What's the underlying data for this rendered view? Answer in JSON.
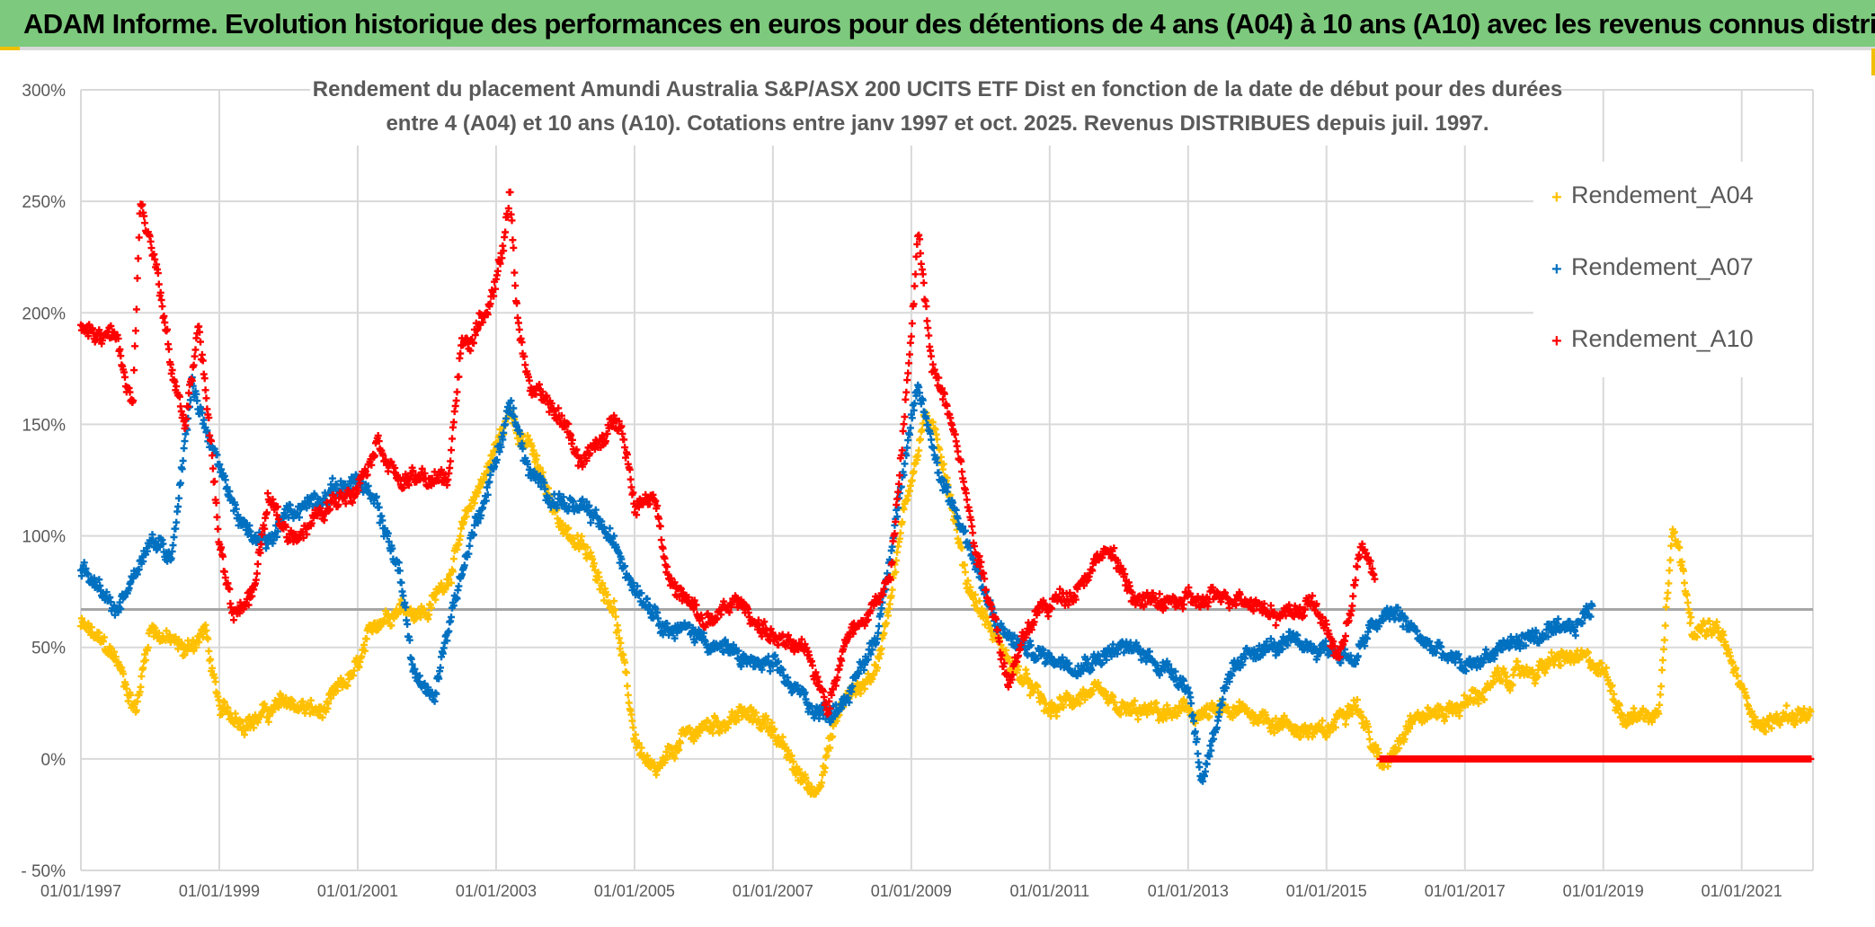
{
  "banner": {
    "title": "ADAM Informe. Evolution historique des performances en euros pour des détentions de 4 ans (A04) à 10 ans (A10) avec les revenus connus distribués",
    "background": "#7dc97d"
  },
  "chart_data": {
    "type": "scatter",
    "title_lines": [
      "Rendement du placement Amundi Australia S&P/ASX 200 UCITS ETF Dist en fonction de la date de début pour des durées",
      "entre 4 (A04) et 10 ans (A10). Cotations entre janv 1997 et oct. 2025. Revenus DISTRIBUES depuis juil. 1997."
    ],
    "xlabel": "",
    "ylabel": "",
    "xlim": [
      1997.0,
      2022.03
    ],
    "ylim": [
      -50,
      300
    ],
    "y_ticks": [
      300,
      250,
      200,
      150,
      100,
      50,
      0,
      -50
    ],
    "y_tick_labels": [
      "300%",
      "250%",
      "200%",
      "150%",
      "100%",
      "50%",
      "0%",
      "- 50%"
    ],
    "x_ticks": [
      1997,
      1999,
      2001,
      2003,
      2005,
      2007,
      2009,
      2011,
      2013,
      2015,
      2017,
      2019,
      2021
    ],
    "x_tick_labels": [
      "01/01/1997",
      "01/01/1999",
      "01/01/2001",
      "01/01/2003",
      "01/01/2005",
      "01/01/2007",
      "01/01/2009",
      "01/01/2011",
      "01/01/2013",
      "01/01/2015",
      "01/01/2017",
      "01/01/2019",
      "01/01/2021"
    ],
    "grid": true,
    "reference_line": 67,
    "legend_position": "right",
    "series": [
      {
        "name": "Rendement_A04",
        "color": "#ffc000",
        "points": [
          [
            1997.0,
            60
          ],
          [
            1997.5,
            45
          ],
          [
            1997.8,
            22
          ],
          [
            1998.0,
            60
          ],
          [
            1998.5,
            48
          ],
          [
            1998.8,
            58
          ],
          [
            1999.0,
            20
          ],
          [
            1999.5,
            18
          ],
          [
            2000.0,
            25
          ],
          [
            2000.5,
            20
          ],
          [
            2001.0,
            40
          ],
          [
            2001.3,
            62
          ],
          [
            2001.6,
            70
          ],
          [
            2002.0,
            66
          ],
          [
            2002.3,
            82
          ],
          [
            2002.7,
            118
          ],
          [
            2003.2,
            155
          ],
          [
            2003.5,
            140
          ],
          [
            2003.8,
            112
          ],
          [
            2004.3,
            92
          ],
          [
            2004.7,
            70
          ],
          [
            2005.0,
            10
          ],
          [
            2005.3,
            -10
          ],
          [
            2005.7,
            8
          ],
          [
            2006.0,
            14
          ],
          [
            2006.5,
            20
          ],
          [
            2007.0,
            15
          ],
          [
            2007.3,
            -5
          ],
          [
            2007.6,
            -15
          ],
          [
            2008.0,
            25
          ],
          [
            2008.5,
            40
          ],
          [
            2008.9,
            112
          ],
          [
            2009.2,
            155
          ],
          [
            2009.5,
            130
          ],
          [
            2009.8,
            80
          ],
          [
            2010.2,
            55
          ],
          [
            2010.5,
            40
          ],
          [
            2011.0,
            20
          ],
          [
            2011.5,
            30
          ],
          [
            2012.0,
            20
          ],
          [
            2012.5,
            20
          ],
          [
            2013.0,
            20
          ],
          [
            2013.5,
            20
          ],
          [
            2014.0,
            20
          ],
          [
            2014.5,
            15
          ],
          [
            2015.0,
            10
          ],
          [
            2015.4,
            30
          ],
          [
            2015.8,
            -5
          ],
          [
            2016.2,
            20
          ],
          [
            2016.5,
            20
          ],
          [
            2017.0,
            25
          ],
          [
            2017.5,
            35
          ],
          [
            2018.0,
            40
          ],
          [
            2018.5,
            45
          ],
          [
            2019.0,
            40
          ],
          [
            2019.3,
            20
          ],
          [
            2019.8,
            20
          ],
          [
            2020.0,
            110
          ],
          [
            2020.3,
            60
          ],
          [
            2020.7,
            55
          ],
          [
            2021.0,
            30
          ],
          [
            2021.3,
            15
          ],
          [
            2021.7,
            20
          ],
          [
            2022.0,
            20
          ]
        ]
      },
      {
        "name": "Rendement_A07",
        "color": "#0070c0",
        "points": [
          [
            1997.0,
            85
          ],
          [
            1997.5,
            65
          ],
          [
            1998.0,
            100
          ],
          [
            1998.3,
            90
          ],
          [
            1998.6,
            170
          ],
          [
            1999.0,
            130
          ],
          [
            1999.4,
            100
          ],
          [
            1999.7,
            95
          ],
          [
            2000.0,
            110
          ],
          [
            2000.5,
            120
          ],
          [
            2001.0,
            125
          ],
          [
            2001.3,
            110
          ],
          [
            2001.6,
            85
          ],
          [
            2001.8,
            40
          ],
          [
            2002.1,
            25
          ],
          [
            2002.3,
            60
          ],
          [
            2002.6,
            95
          ],
          [
            2003.0,
            135
          ],
          [
            2003.2,
            160
          ],
          [
            2003.5,
            125
          ],
          [
            2004.0,
            115
          ],
          [
            2004.5,
            105
          ],
          [
            2005.0,
            80
          ],
          [
            2005.5,
            60
          ],
          [
            2006.0,
            55
          ],
          [
            2006.5,
            45
          ],
          [
            2007.0,
            40
          ],
          [
            2007.5,
            25
          ],
          [
            2007.8,
            20
          ],
          [
            2008.2,
            35
          ],
          [
            2008.5,
            55
          ],
          [
            2008.8,
            115
          ],
          [
            2009.1,
            165
          ],
          [
            2009.4,
            130
          ],
          [
            2009.8,
            100
          ],
          [
            2010.2,
            60
          ],
          [
            2010.6,
            50
          ],
          [
            2011.0,
            45
          ],
          [
            2011.5,
            45
          ],
          [
            2012.0,
            50
          ],
          [
            2012.5,
            45
          ],
          [
            2013.0,
            35
          ],
          [
            2013.2,
            -10
          ],
          [
            2013.5,
            30
          ],
          [
            2014.0,
            50
          ],
          [
            2014.5,
            50
          ],
          [
            2015.0,
            50
          ],
          [
            2015.4,
            45
          ],
          [
            2015.7,
            60
          ],
          [
            2016.0,
            65
          ],
          [
            2016.5,
            50
          ],
          [
            2017.0,
            40
          ],
          [
            2017.5,
            50
          ],
          [
            2018.0,
            55
          ],
          [
            2018.5,
            55
          ],
          [
            2018.85,
            68
          ]
        ]
      },
      {
        "name": "Rendement_A10",
        "color": "#ff0000",
        "points": [
          [
            1997.0,
            195
          ],
          [
            1997.5,
            190
          ],
          [
            1997.75,
            158
          ],
          [
            1997.86,
            255
          ],
          [
            1998.1,
            220
          ],
          [
            1998.3,
            175
          ],
          [
            1998.5,
            150
          ],
          [
            1998.7,
            195
          ],
          [
            1998.9,
            135
          ],
          [
            1999.0,
            95
          ],
          [
            1999.2,
            65
          ],
          [
            1999.5,
            75
          ],
          [
            1999.7,
            115
          ],
          [
            2000.0,
            100
          ],
          [
            2000.5,
            110
          ],
          [
            2001.0,
            125
          ],
          [
            2001.3,
            145
          ],
          [
            2001.6,
            125
          ],
          [
            2002.0,
            125
          ],
          [
            2002.3,
            125
          ],
          [
            2002.5,
            185
          ],
          [
            2002.8,
            195
          ],
          [
            2003.1,
            230
          ],
          [
            2003.2,
            255
          ],
          [
            2003.3,
            200
          ],
          [
            2003.5,
            165
          ],
          [
            2004.0,
            150
          ],
          [
            2004.2,
            135
          ],
          [
            2004.5,
            140
          ],
          [
            2004.8,
            155
          ],
          [
            2005.0,
            115
          ],
          [
            2005.3,
            120
          ],
          [
            2005.5,
            80
          ],
          [
            2006.0,
            60
          ],
          [
            2006.5,
            70
          ],
          [
            2007.0,
            55
          ],
          [
            2007.5,
            45
          ],
          [
            2007.8,
            25
          ],
          [
            2008.0,
            50
          ],
          [
            2008.3,
            65
          ],
          [
            2008.7,
            80
          ],
          [
            2009.0,
            190
          ],
          [
            2009.1,
            235
          ],
          [
            2009.3,
            175
          ],
          [
            2009.6,
            155
          ],
          [
            2009.9,
            100
          ],
          [
            2010.2,
            65
          ],
          [
            2010.4,
            35
          ],
          [
            2010.8,
            65
          ],
          [
            2011.3,
            75
          ],
          [
            2011.8,
            95
          ],
          [
            2012.3,
            70
          ],
          [
            2012.8,
            70
          ],
          [
            2013.3,
            70
          ],
          [
            2013.8,
            75
          ],
          [
            2014.3,
            65
          ],
          [
            2014.8,
            70
          ],
          [
            2015.2,
            45
          ],
          [
            2015.5,
            95
          ],
          [
            2015.7,
            80
          ]
        ],
        "zero_segment": [
          2015.78,
          2022.0
        ]
      }
    ]
  }
}
